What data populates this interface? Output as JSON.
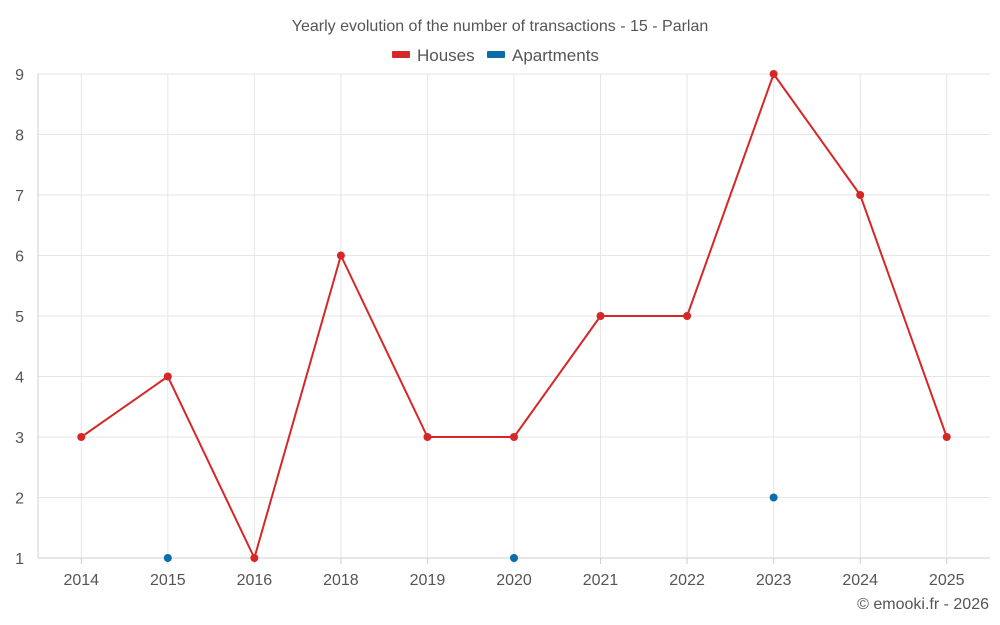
{
  "chart_data": {
    "type": "line",
    "title": "Yearly evolution of the number of transactions - 15 - Parlan",
    "categories": [
      "2014",
      "2015",
      "2016",
      "2018",
      "2019",
      "2020",
      "2021",
      "2022",
      "2023",
      "2024",
      "2025"
    ],
    "y_ticks": [
      "1",
      "2",
      "3",
      "4",
      "5",
      "6",
      "7",
      "8",
      "9"
    ],
    "ylim": [
      1,
      9
    ],
    "xlabel": "",
    "ylabel": "",
    "grid": true,
    "legend_position": "top-center",
    "series": [
      {
        "name": "Houses",
        "color": "#d62728",
        "show_line": true,
        "values": [
          3,
          4,
          1,
          6,
          3,
          3,
          5,
          5,
          9,
          7,
          3
        ]
      },
      {
        "name": "Apartments",
        "color": "#0b6ea8",
        "show_line": false,
        "values": [
          null,
          1,
          null,
          null,
          null,
          1,
          null,
          null,
          2,
          null,
          null
        ]
      }
    ],
    "credit": "© emooki.fr - 2026"
  }
}
